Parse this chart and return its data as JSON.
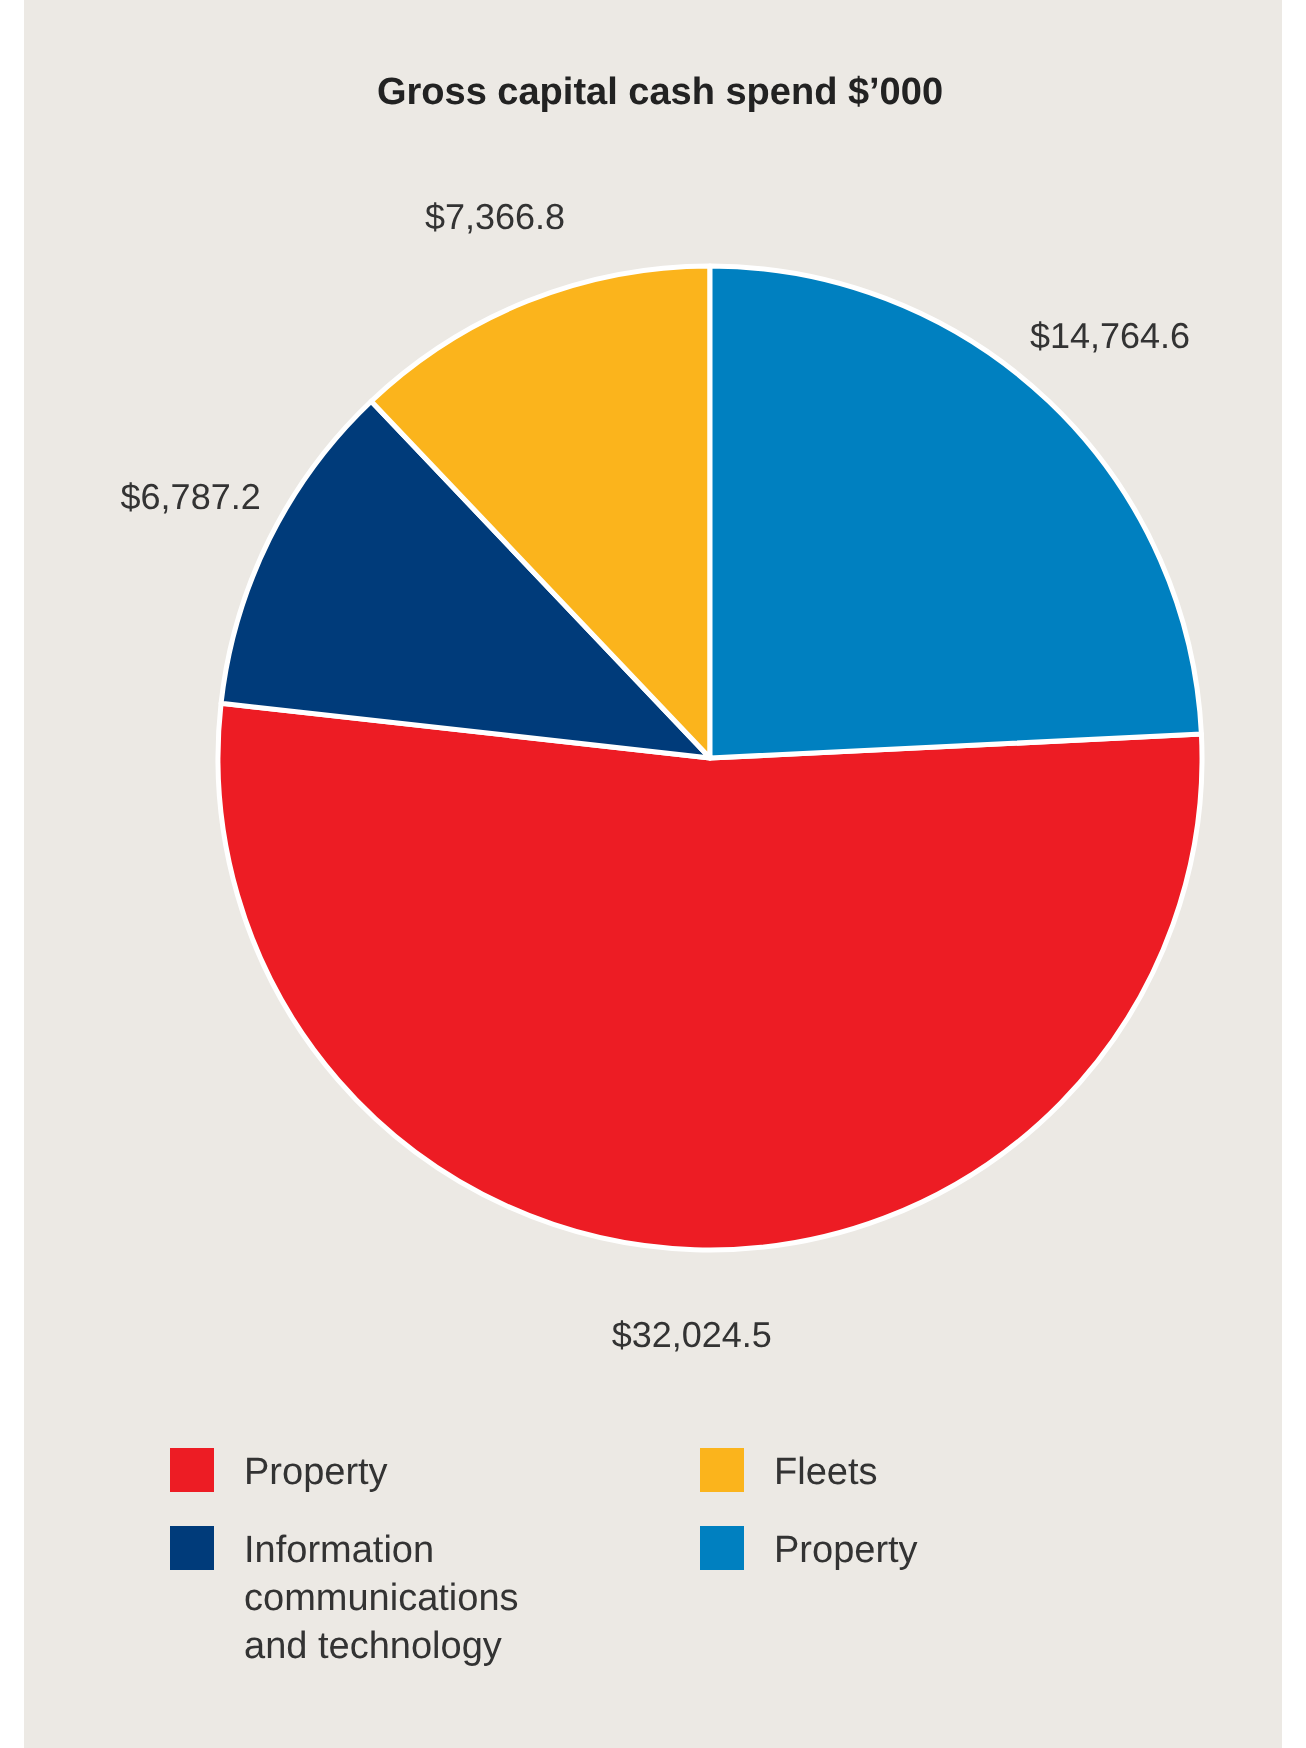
{
  "chart_data": {
    "type": "pie",
    "title": "Gross capital cash spend $’000",
    "categories": [
      "Property",
      "Information communications and technology",
      "Fleets",
      "Property"
    ],
    "values": [
      32024.5,
      6787.2,
      7366.8,
      14764.6
    ],
    "value_labels": [
      "$32,024.5",
      "$6,787.2",
      "$7,366.8",
      "$14,764.6"
    ],
    "colors": [
      "#ed1c24",
      "#003b7a",
      "#fbb41c",
      "#0080c0"
    ],
    "legend": "bottom"
  }
}
